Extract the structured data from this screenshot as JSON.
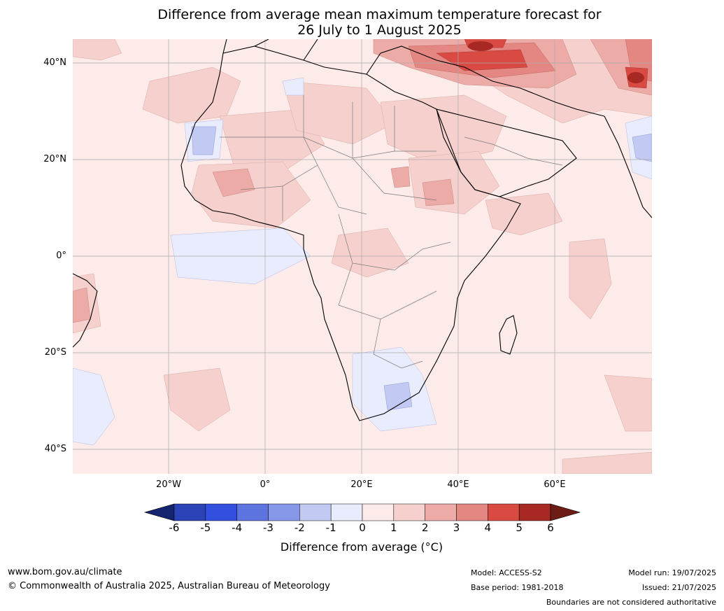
{
  "title": {
    "line1": "Difference from average mean maximum temperature forecast for",
    "line2": "26 July to 1 August 2025"
  },
  "map": {
    "lat_labels": [
      "40°N",
      "20°N",
      "0°",
      "20°S",
      "40°S"
    ],
    "lon_labels": [
      "20°W",
      "0°",
      "20°E",
      "40°E",
      "60°E"
    ]
  },
  "colorbar": {
    "ticks": [
      "-6",
      "-5",
      "-4",
      "-3",
      "-2",
      "-1",
      "0",
      "1",
      "2",
      "3",
      "4",
      "5",
      "6"
    ],
    "colors": [
      "#1f3194",
      "#2c43b8",
      "#334fe0",
      "#5d73e0",
      "#8697e8",
      "#c2c9f2",
      "#e9ecfc",
      "#fcebe9",
      "#f5d0cd",
      "#edaba7",
      "#e48681",
      "#d94a42",
      "#a82923"
    ],
    "low_extend_color": "#15246e",
    "high_extend_color": "#6e1c16",
    "title": "Difference from average (°C)"
  },
  "footer": {
    "website": "www.bom.gov.au/climate",
    "copyright": "© Commonwealth of Australia 2025, Australian Bureau of Meteorology",
    "model": "Model: ACCESS-S2",
    "base_period": "Base period: 1981-2018",
    "model_run": "Model run: 19/07/2025",
    "issued": "Issued: 21/07/2025",
    "boundaries_note": "Boundaries are not considered authoritative"
  }
}
